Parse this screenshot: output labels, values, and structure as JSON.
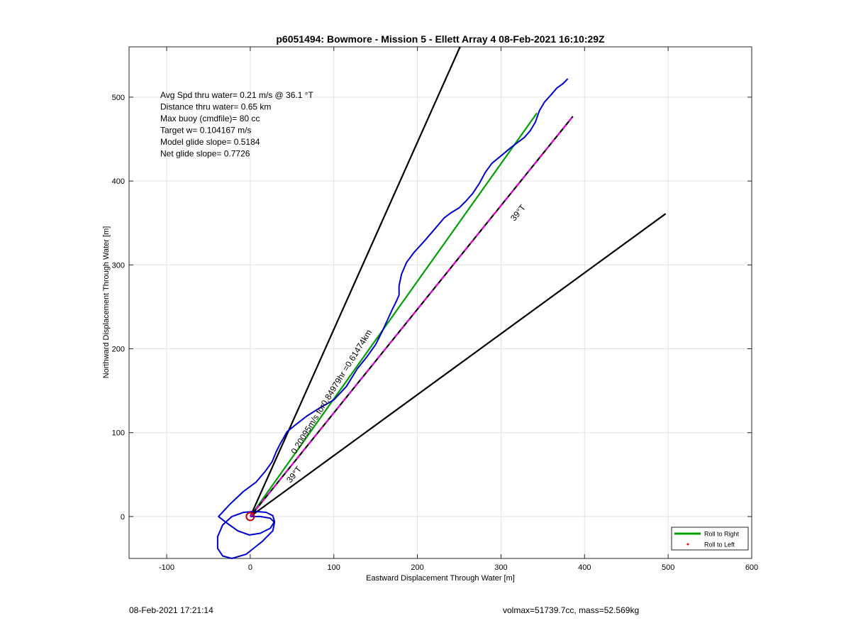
{
  "chart_data": {
    "type": "line",
    "title": "p6051494: Bowmore - Mission 5 - Ellett Array 4 08-Feb-2021 16:10:29Z",
    "xlabel": "Eastward Displacement Through Water [m]",
    "ylabel": "Northward Displacement Through Water [m]",
    "xlim": [
      -145,
      600
    ],
    "ylim": [
      -50,
      560
    ],
    "xticks": [
      -100,
      0,
      100,
      200,
      300,
      400,
      500,
      600
    ],
    "yticks": [
      0,
      100,
      200,
      300,
      400,
      500
    ],
    "grid": true,
    "legend_position": "bottom-right",
    "legend": [
      {
        "label": "Roll to Right",
        "color": "#00a000",
        "style": "line"
      },
      {
        "label": "Roll to Left",
        "color": "#ff0000",
        "style": "dot"
      }
    ],
    "annotation_lines": [
      "Avg Spd thru water=  0.21 m/s @  36.1 °T",
      "Distance thru water=  0.65 km",
      "Max buoy (cmdfile)= 80 cc",
      "Target w= 0.104167 m/s",
      "Model glide slope= 0.5184",
      "Net glide slope= 0.7726"
    ],
    "series": [
      {
        "color": "#0000cc",
        "x": [
          0,
          12,
          24,
          29,
          27,
          14,
          -5,
          -22,
          -33,
          -39,
          -39,
          -33,
          -22,
          -8,
          6,
          19,
          27,
          29,
          24,
          12,
          -1,
          -15,
          -29,
          -38,
          -25,
          -8,
          7,
          18,
          26,
          31,
          35,
          44,
          55,
          68,
          84,
          100,
          115,
          128,
          140,
          150,
          158,
          164,
          170,
          175,
          178,
          178,
          178,
          181,
          187,
          196,
          208,
          220,
          232,
          240,
          250,
          258,
          266,
          274,
          281,
          289,
          300,
          312,
          320,
          328,
          335,
          341,
          346,
          352,
          360,
          367,
          374,
          380
        ],
        "y": [
          0,
          0,
          -2,
          -7,
          -17,
          -30,
          -45,
          -50,
          -47,
          -38,
          -24,
          -10,
          0,
          5,
          6,
          5,
          1,
          -6,
          -14,
          -20,
          -22,
          -17,
          -7,
          0,
          14,
          30,
          41,
          54,
          65,
          77,
          85,
          101,
          110,
          120,
          130,
          139,
          155,
          176,
          191,
          205,
          221,
          234,
          247,
          257,
          264,
          269,
          275,
          289,
          303,
          315,
          328,
          342,
          356,
          362,
          368,
          376,
          385,
          397,
          410,
          421,
          430,
          440,
          446,
          452,
          460,
          470,
          484,
          494,
          503,
          511,
          516,
          522
        ]
      },
      {
        "color": "#00a000",
        "x": [
          0,
          343
        ],
        "y": [
          0,
          481
        ]
      },
      {
        "color": "#e000e0",
        "dashed": true,
        "x": [
          0,
          386
        ],
        "y": [
          0,
          477
        ]
      },
      {
        "color": "#000000",
        "x": [
          0,
          251
        ],
        "y": [
          0,
          560
        ]
      },
      {
        "color": "#000000",
        "x": [
          0,
          497
        ],
        "y": [
          0,
          361
        ]
      }
    ],
    "start_marker": {
      "x": 0,
      "y": 0,
      "color": "#cc0000"
    },
    "line_labels": [
      {
        "text": "39°T",
        "x": 323,
        "y": 360,
        "angle": -51
      },
      {
        "text": "39°T",
        "x": 55,
        "y": 48,
        "angle": -51
      },
      {
        "text": "0.20095m/s for0.84979hr =0.61474km",
        "x": 100,
        "y": 147,
        "angle": -58
      }
    ]
  },
  "footer": {
    "left": "08-Feb-2021 17:21:14",
    "right": "volmax=51739.7cc, mass=52.569kg"
  }
}
